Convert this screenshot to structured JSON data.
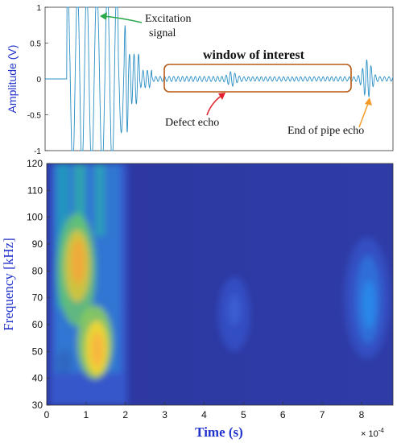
{
  "chart_data": [
    {
      "type": "line",
      "ylabel": "Amplitude (V)",
      "ylim": [
        -1,
        1
      ],
      "yticks": [
        "1",
        "0.5",
        "0",
        "-0.5",
        "-1"
      ],
      "xlim": [
        0,
        8.8
      ],
      "grid": false,
      "series": [
        {
          "color": "#2a8fc5",
          "description_points": {
            "x": [
              0.0,
              0.55,
              0.6,
              0.8,
              1.0,
              1.2,
              1.4,
              1.6,
              1.8,
              2.0,
              2.2,
              2.5,
              3.0,
              4.0,
              4.5,
              4.7,
              4.9,
              5.3,
              6.0,
              7.0,
              7.6,
              7.9,
              8.1,
              8.3,
              8.5,
              8.8
            ],
            "y": [
              0.0,
              0.0,
              1.0,
              -1.0,
              1.0,
              -1.0,
              1.0,
              -1.0,
              0.7,
              -0.5,
              0.25,
              -0.12,
              0.04,
              0.03,
              0.05,
              -0.09,
              0.06,
              0.03,
              0.02,
              0.03,
              0.03,
              0.18,
              -0.25,
              0.2,
              0.05,
              0.02
            ]
          }
        }
      ],
      "annotations": [
        {
          "text": "Excitation\nsignal",
          "lines": [
            "Excitation",
            "signal"
          ],
          "arrow_color": "#2aa84a"
        },
        {
          "text": "window of interest"
        },
        {
          "text": "Defect echo",
          "arrow_color": "#e0202a"
        },
        {
          "text": "End of pipe echo",
          "arrow_color": "#f59b2a"
        }
      ]
    },
    {
      "type": "heatmap",
      "xlabel": "Time (s)",
      "ylabel": "Frequency [kHz]",
      "x_multiplier": "×10⁻⁴",
      "x_multiplier_base": "× 10",
      "x_multiplier_exp": "-4",
      "xlim": [
        0,
        8.8
      ],
      "ylim": [
        30,
        120
      ],
      "xticks": [
        "0",
        "1",
        "2",
        "3",
        "4",
        "5",
        "6",
        "7",
        "8"
      ],
      "yticks": [
        "120",
        "110",
        "100",
        "90",
        "80",
        "70",
        "60",
        "50",
        "40",
        "30"
      ],
      "colormap": "parula",
      "background_color": "#2f3aa3",
      "features": [
        {
          "description": "excitation signal energy",
          "x_range": [
            0.3,
            2.0
          ],
          "y_range": [
            30,
            120
          ],
          "peak_x": 1.25,
          "peak_y": 50,
          "peak_level": "high"
        },
        {
          "description": "secondary ridge",
          "x_range": [
            0.5,
            1.0
          ],
          "y_range": [
            60,
            95
          ],
          "peak_level": "high"
        },
        {
          "description": "defect echo",
          "x": 4.7,
          "y_range": [
            50,
            85
          ],
          "peak_level": "low"
        },
        {
          "description": "end of pipe echo",
          "x": 8.2,
          "y_range": [
            45,
            100
          ],
          "peak_level": "medium"
        }
      ]
    }
  ]
}
